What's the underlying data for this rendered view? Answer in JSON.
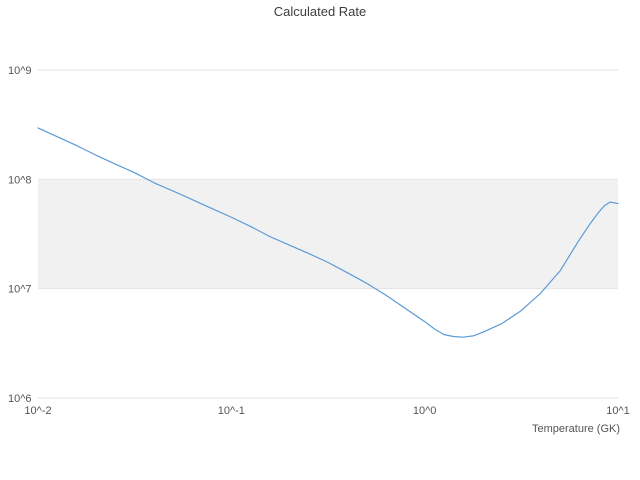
{
  "chart_data": {
    "type": "line",
    "title": "Calculated Rate",
    "xlabel": "Temperature (GK)",
    "ylabel": "",
    "xscale": "log",
    "yscale": "log",
    "xlim": [
      0.01,
      10
    ],
    "ylim": [
      1000000,
      1000000000
    ],
    "grid": "horizontal",
    "legend": false,
    "xticks": {
      "values": [
        0.01,
        0.1,
        1,
        10
      ],
      "labels": [
        "10^-2",
        "10^-1",
        "10^0",
        "10^1"
      ]
    },
    "yticks": {
      "values": [
        1000000,
        10000000,
        100000000,
        1000000000
      ],
      "labels": [
        "10^6",
        "10^7",
        "10^8",
        "10^9"
      ]
    },
    "shaded_band_y": [
      10000000,
      100000000
    ],
    "colors": {
      "line": "#5b9bd5",
      "band": "#f1f1f1",
      "grid": "#e4e4e4",
      "tick_text": "#555555",
      "title_text": "#3d3d3d"
    },
    "series": [
      {
        "name": "calculated-rate",
        "x": [
          0.01,
          0.0126,
          0.0158,
          0.02,
          0.0251,
          0.0316,
          0.0398,
          0.0501,
          0.0631,
          0.0794,
          0.1,
          0.126,
          0.158,
          0.2,
          0.251,
          0.316,
          0.398,
          0.501,
          0.631,
          0.794,
          1.0,
          1.12,
          1.26,
          1.41,
          1.58,
          1.78,
          2.0,
          2.51,
          3.16,
          3.98,
          5.01,
          6.31,
          7.08,
          7.94,
          8.51,
          9.12,
          10.0
        ],
        "y": [
          295000000.0,
          245000000.0,
          204000000.0,
          166000000.0,
          138000000.0,
          115000000.0,
          93000000.0,
          78000000.0,
          65000000.0,
          54000000.0,
          45000000.0,
          37000000.0,
          30000000.0,
          25000000.0,
          21000000.0,
          17400000.0,
          14000000.0,
          11200000.0,
          8700000.0,
          6600000.0,
          5000000.0,
          4300000.0,
          3800000.0,
          3650000.0,
          3600000.0,
          3700000.0,
          4000000.0,
          4800000.0,
          6300000.0,
          9100000.0,
          14500000.0,
          28000000.0,
          38000000.0,
          50000000.0,
          57500000.0,
          62000000.0,
          60000000.0
        ]
      }
    ]
  }
}
